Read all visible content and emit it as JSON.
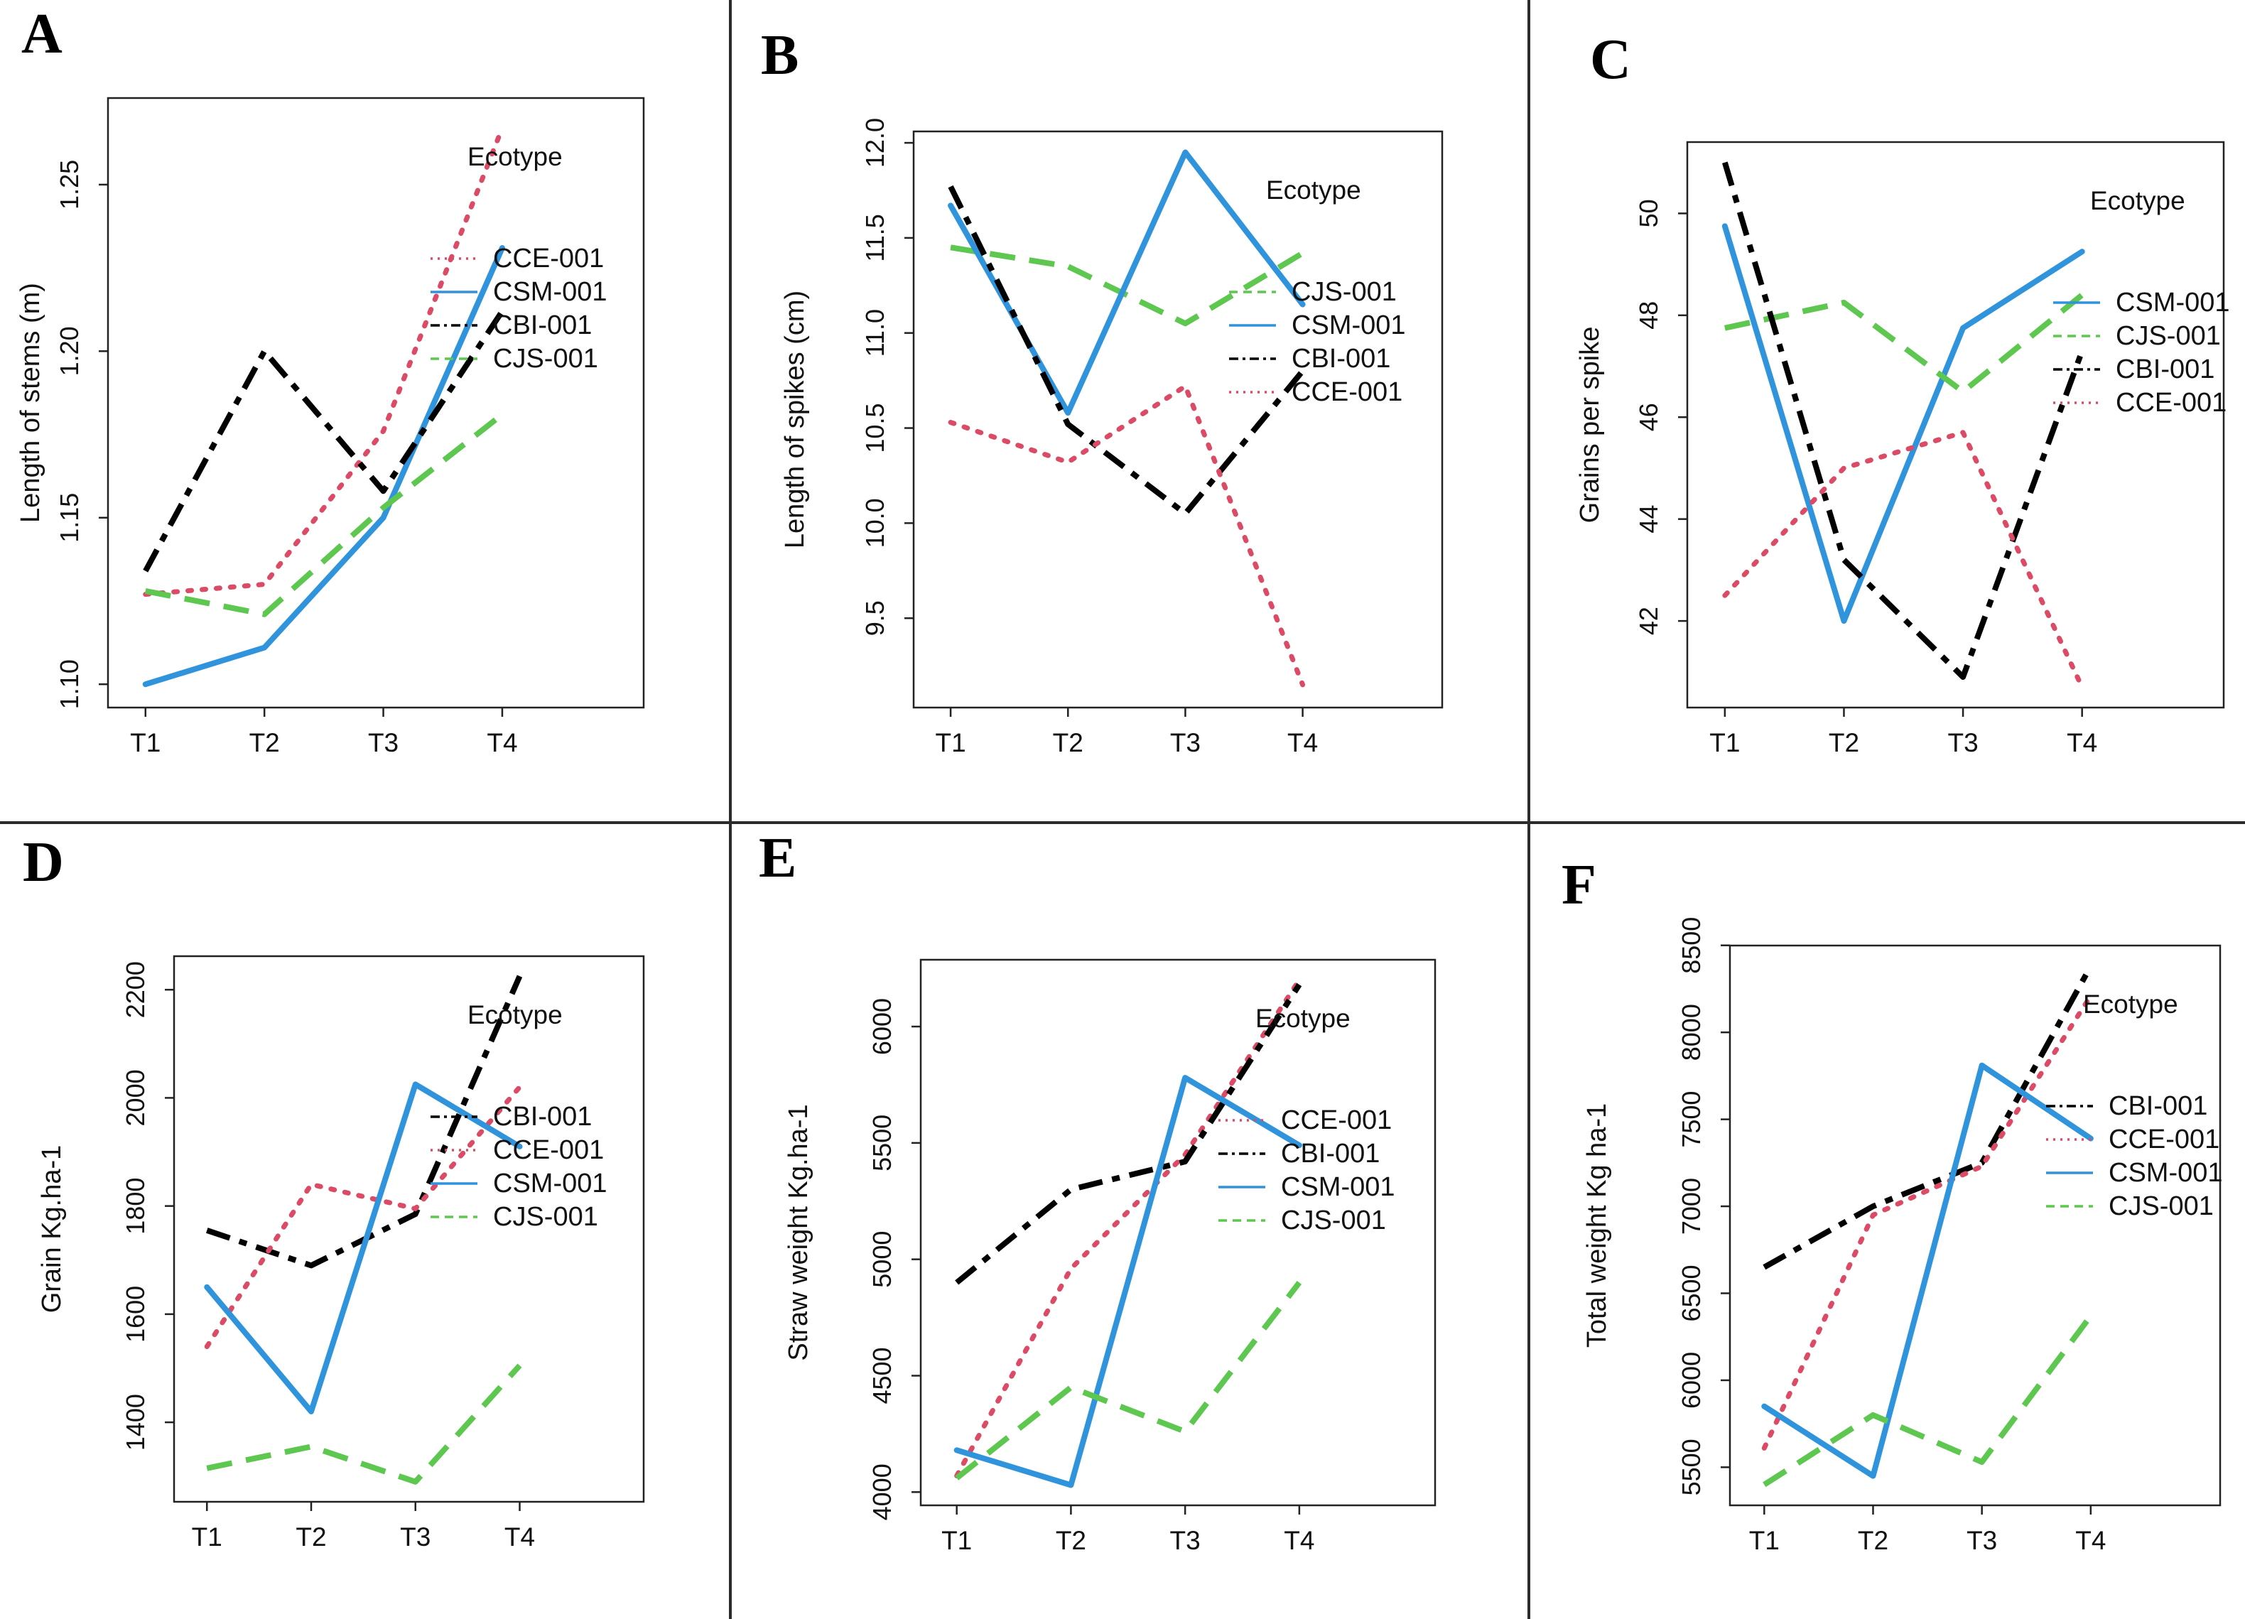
{
  "figure": {
    "legend_title": "Ecotype",
    "x_categories": [
      "T1",
      "T2",
      "T3",
      "T4"
    ],
    "styles": {
      "CCE-001": {
        "color": "#DC4B66",
        "line_style": "dotted"
      },
      "CSM-001": {
        "color": "#2F94DC",
        "line_style": "solid"
      },
      "CBI-001": {
        "color": "#000000",
        "line_style": "dashdot"
      },
      "CJS-001": {
        "color": "#5DC74F",
        "line_style": "dashed"
      }
    }
  },
  "chart_data": [
    {
      "type": "line",
      "panel": "A",
      "title": "",
      "x": [
        "T1",
        "T2",
        "T3",
        "T4"
      ],
      "xlabel": "",
      "ylabel": "Length of stems (m)",
      "ylim": [
        1.093,
        1.276
      ],
      "yticks": [
        "1.10",
        "1.15",
        "1.20",
        "1.25"
      ],
      "grid": false,
      "legend_title": "Ecotype",
      "legend_position": "inside-top-right",
      "legend_order": [
        "CCE-001",
        "CSM-001",
        "CBI-001",
        "CJS-001"
      ],
      "series": [
        {
          "name": "CCE-001",
          "values": [
            1.127,
            1.13,
            1.176,
            1.267
          ]
        },
        {
          "name": "CSM-001",
          "values": [
            1.1,
            1.111,
            1.15,
            1.231
          ]
        },
        {
          "name": "CBI-001",
          "values": [
            1.134,
            1.2,
            1.158,
            1.212
          ]
        },
        {
          "name": "CJS-001",
          "values": [
            1.128,
            1.121,
            1.153,
            1.181
          ]
        }
      ]
    },
    {
      "type": "line",
      "panel": "B",
      "title": "",
      "x": [
        "T1",
        "T2",
        "T3",
        "T4"
      ],
      "xlabel": "",
      "ylabel": "Length of spikes (cm)",
      "ylim": [
        9.03,
        12.06
      ],
      "yticks": [
        "9.5",
        "10.0",
        "10.5",
        "11.0",
        "11.5",
        "12.0"
      ],
      "grid": false,
      "legend_title": "Ecotype",
      "legend_position": "inside-top-right",
      "legend_order": [
        "CJS-001",
        "CSM-001",
        "CBI-001",
        "CCE-001"
      ],
      "series": [
        {
          "name": "CJS-001",
          "values": [
            11.45,
            11.35,
            11.05,
            11.42
          ]
        },
        {
          "name": "CSM-001",
          "values": [
            11.67,
            10.58,
            11.95,
            11.15
          ]
        },
        {
          "name": "CBI-001",
          "values": [
            11.77,
            10.52,
            10.05,
            10.8
          ]
        },
        {
          "name": "CCE-001",
          "values": [
            10.53,
            10.32,
            10.72,
            9.15
          ]
        }
      ]
    },
    {
      "type": "line",
      "panel": "C",
      "title": "",
      "x": [
        "T1",
        "T2",
        "T3",
        "T4"
      ],
      "xlabel": "",
      "ylabel": "Grains per spike",
      "ylim": [
        40.3,
        51.4
      ],
      "yticks": [
        "42",
        "44",
        "46",
        "48",
        "50"
      ],
      "grid": false,
      "legend_title": "Ecotype",
      "legend_position": "inside-top-right",
      "legend_order": [
        "CSM-001",
        "CJS-001",
        "CBI-001",
        "CCE-001"
      ],
      "series": [
        {
          "name": "CSM-001",
          "values": [
            49.75,
            42.0,
            47.75,
            49.25
          ]
        },
        {
          "name": "CJS-001",
          "values": [
            47.75,
            48.25,
            46.5,
            48.4
          ]
        },
        {
          "name": "CBI-001",
          "values": [
            51.0,
            43.2,
            40.9,
            47.3
          ]
        },
        {
          "name": "CCE-001",
          "values": [
            42.5,
            45.0,
            45.7,
            40.7
          ]
        }
      ]
    },
    {
      "type": "line",
      "panel": "D",
      "title": "",
      "x": [
        "T1",
        "T2",
        "T3",
        "T4"
      ],
      "xlabel": "",
      "ylabel": "Grain Kg.ha-1",
      "ylim": [
        1253,
        2262
      ],
      "yticks": [
        "1400",
        "1600",
        "1800",
        "2000",
        "2200"
      ],
      "grid": false,
      "legend_title": "Ecotype",
      "legend_position": "inside-top-right",
      "legend_order": [
        "CBI-001",
        "CCE-001",
        "CSM-001",
        "CJS-001"
      ],
      "series": [
        {
          "name": "CBI-001",
          "values": [
            1755,
            1690,
            1785,
            2225
          ]
        },
        {
          "name": "CCE-001",
          "values": [
            1540,
            1840,
            1795,
            2020
          ]
        },
        {
          "name": "CSM-001",
          "values": [
            1650,
            1420,
            2025,
            1910
          ]
        },
        {
          "name": "CJS-001",
          "values": [
            1315,
            1355,
            1290,
            1505
          ]
        }
      ]
    },
    {
      "type": "line",
      "panel": "E",
      "title": "",
      "x": [
        "T1",
        "T2",
        "T3",
        "T4"
      ],
      "xlabel": "",
      "ylabel": "Straw weight Kg.ha-1",
      "ylim": [
        3943,
        6287
      ],
      "yticks": [
        "4000",
        "4500",
        "5000",
        "5500",
        "6000"
      ],
      "grid": false,
      "legend_title": "Ecotype",
      "legend_position": "inside-top-right",
      "legend_order": [
        "CCE-001",
        "CBI-001",
        "CSM-001",
        "CJS-001"
      ],
      "series": [
        {
          "name": "CCE-001",
          "values": [
            4070,
            4960,
            5450,
            6200
          ]
        },
        {
          "name": "CBI-001",
          "values": [
            4900,
            5300,
            5420,
            6180
          ]
        },
        {
          "name": "CSM-001",
          "values": [
            4180,
            4030,
            5780,
            5490
          ]
        },
        {
          "name": "CJS-001",
          "values": [
            4060,
            4450,
            4260,
            4900
          ]
        }
      ]
    },
    {
      "type": "line",
      "panel": "F",
      "title": "",
      "x": [
        "T1",
        "T2",
        "T3",
        "T4"
      ],
      "xlabel": "",
      "ylabel": "Total weight Kg ha-1",
      "ylim": [
        5281,
        8499
      ],
      "yticks": [
        "5500",
        "6000",
        "6500",
        "7000",
        "7500",
        "8000",
        "8500"
      ],
      "grid": false,
      "legend_title": "Ecotype",
      "legend_position": "inside-top-right",
      "legend_order": [
        "CBI-001",
        "CCE-001",
        "CSM-001",
        "CJS-001"
      ],
      "series": [
        {
          "name": "CBI-001",
          "values": [
            6650,
            7000,
            7250,
            8380
          ]
        },
        {
          "name": "CCE-001",
          "values": [
            5610,
            6950,
            7230,
            8210
          ]
        },
        {
          "name": "CSM-001",
          "values": [
            5850,
            5450,
            7810,
            7390
          ]
        },
        {
          "name": "CJS-001",
          "values": [
            5400,
            5800,
            5530,
            6370
          ]
        }
      ]
    }
  ]
}
